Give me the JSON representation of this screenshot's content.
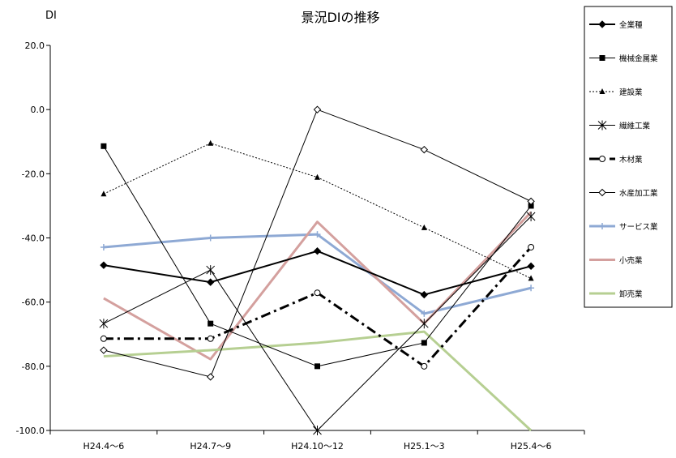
{
  "chart_data": {
    "type": "line",
    "title": "景況DIの推移",
    "ylabel": "DI",
    "xlabel": "",
    "ylim": [
      -100,
      20
    ],
    "yticks": [
      20,
      0,
      -20,
      -40,
      -60,
      -80,
      -100
    ],
    "ytick_labels": [
      "20.0",
      "0.0",
      "-20.0",
      "-40.0",
      "-60.0",
      "-80.0",
      "-100.0"
    ],
    "categories": [
      "H24.4～6",
      "H24.7～9",
      "H24.10～12",
      "H25.1～3",
      "H25.4～6"
    ],
    "grid": false,
    "legend_position": "right",
    "series": [
      {
        "name": "全業種",
        "values": [
          -48.5,
          -53.8,
          -44.1,
          -57.7,
          -48.8
        ],
        "color": "#000000",
        "style": "solid",
        "width": 2,
        "marker": "diamond-filled"
      },
      {
        "name": "機械金属業",
        "values": [
          -11.4,
          -66.7,
          -80.0,
          -72.7,
          -30.0
        ],
        "color": "#000000",
        "style": "solid",
        "width": 1,
        "marker": "square-filled"
      },
      {
        "name": "建設業",
        "values": [
          -26.3,
          -10.5,
          -21.1,
          -36.8,
          -52.6
        ],
        "color": "#000000",
        "style": "dotted",
        "width": 1,
        "marker": "triangle-filled"
      },
      {
        "name": "繊維工業",
        "values": [
          -66.7,
          -50.0,
          -100.0,
          -66.7,
          -33.3
        ],
        "color": "#000000",
        "style": "solid",
        "width": 1,
        "marker": "asterisk"
      },
      {
        "name": "木材業",
        "values": [
          -71.4,
          -71.4,
          -57.1,
          -80.0,
          -42.9
        ],
        "color": "#000000",
        "style": "dashdot",
        "width": 3,
        "marker": "circle-open"
      },
      {
        "name": "水産加工業",
        "values": [
          -75.0,
          -83.3,
          0.0,
          -12.5,
          -28.6
        ],
        "color": "#000000",
        "style": "solid",
        "width": 1,
        "marker": "diamond-open"
      },
      {
        "name": "サービス業",
        "values": [
          -42.9,
          -40.0,
          -38.9,
          -63.6,
          -55.6
        ],
        "color": "#8EA9D4",
        "style": "solid",
        "width": 3,
        "marker": "plus"
      },
      {
        "name": "小売業",
        "values": [
          -58.8,
          -77.8,
          -35.0,
          -66.7,
          -32.0
        ],
        "color": "#D4A09E",
        "style": "solid",
        "width": 3,
        "marker": "none"
      },
      {
        "name": "卸売業",
        "values": [
          -76.9,
          -75.0,
          -72.7,
          -69.2,
          -100.0
        ],
        "color": "#B6CF92",
        "style": "solid",
        "width": 3,
        "marker": "none"
      }
    ]
  }
}
